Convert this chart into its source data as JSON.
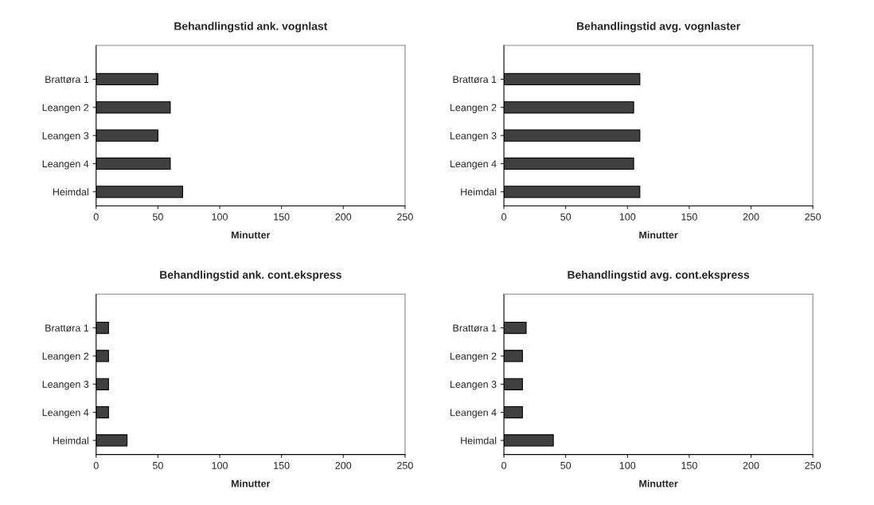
{
  "chart_data": [
    {
      "type": "bar",
      "orientation": "horizontal",
      "title": "Behandlingstid ank. vognlast",
      "xlabel": "Minutter",
      "categories": [
        "Brattøra 1",
        "Leangen 2",
        "Leangen 3",
        "Leangen 4",
        "Heimdal"
      ],
      "values": [
        50,
        60,
        50,
        60,
        70
      ],
      "color": "#404040",
      "xlim": [
        0,
        250
      ],
      "xticks": [
        0,
        50,
        100,
        150,
        200,
        250
      ],
      "grid": false
    },
    {
      "type": "bar",
      "orientation": "horizontal",
      "title": "Behandlingstid avg. vognlaster",
      "xlabel": "Minutter",
      "categories": [
        "Brattøra 1",
        "Leangen 2",
        "Leangen 3",
        "Leangen 4",
        "Heimdal"
      ],
      "values": [
        110,
        105,
        110,
        105,
        110
      ],
      "color": "#404040",
      "xlim": [
        0,
        250
      ],
      "xticks": [
        0,
        50,
        100,
        150,
        200,
        250
      ],
      "grid": false
    },
    {
      "type": "bar",
      "orientation": "horizontal",
      "title": "Behandlingstid ank. cont.ekspress",
      "xlabel": "Minutter",
      "categories": [
        "Brattøra 1",
        "Leangen 2",
        "Leangen 3",
        "Leangen 4",
        "Heimdal"
      ],
      "values": [
        10,
        10,
        10,
        10,
        25
      ],
      "color": "#404040",
      "xlim": [
        0,
        250
      ],
      "xticks": [
        0,
        50,
        100,
        150,
        200,
        250
      ],
      "grid": false
    },
    {
      "type": "bar",
      "orientation": "horizontal",
      "title": "Behandlingstid avg. cont.ekspress",
      "xlabel": "Minutter",
      "categories": [
        "Brattøra 1",
        "Leangen 2",
        "Leangen 3",
        "Leangen 4",
        "Heimdal"
      ],
      "values": [
        18,
        15,
        15,
        15,
        40
      ],
      "color": "#404040",
      "xlim": [
        0,
        250
      ],
      "xticks": [
        0,
        50,
        100,
        150,
        200,
        250
      ],
      "grid": false
    }
  ]
}
